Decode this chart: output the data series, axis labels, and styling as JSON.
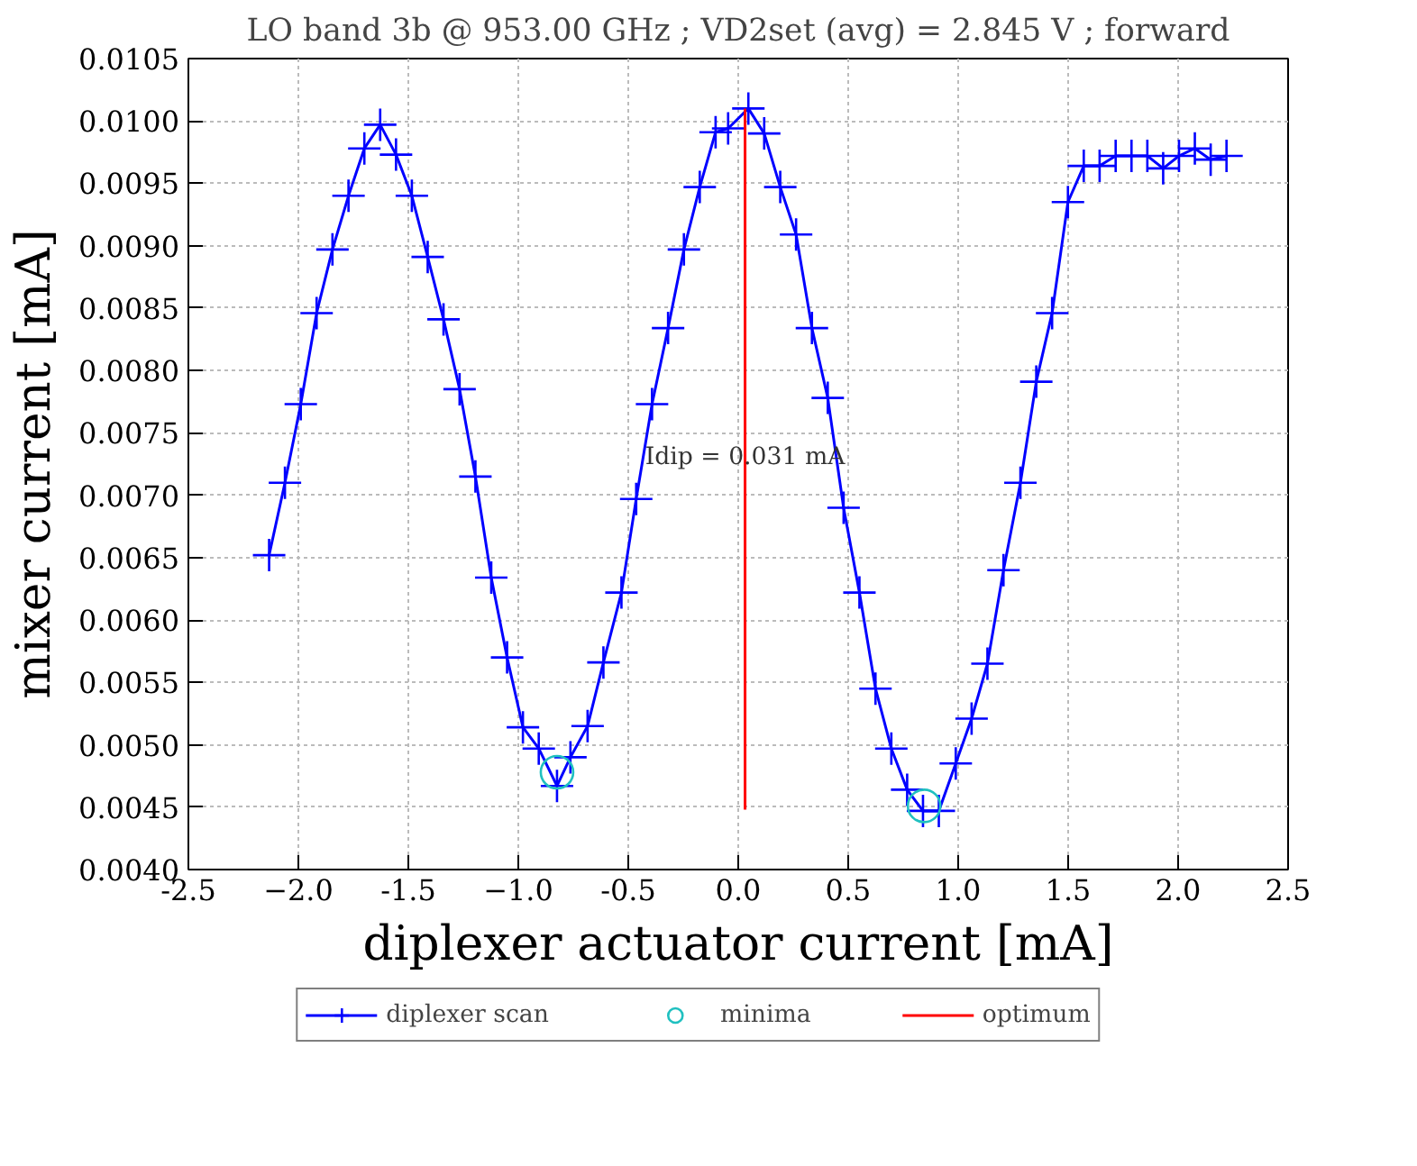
{
  "chart_data": {
    "type": "line",
    "title": "LO band 3b @ 953.00 GHz ; VD2set (avg) = 2.845 V ; forward",
    "xlabel": "diplexer actuator current [mA]",
    "ylabel": "mixer current [mA]",
    "xlim": [
      -2.5,
      2.5
    ],
    "xticks": [
      -2.5,
      {
        "value": -2,
        "label": "−2.0"
      },
      -1.5,
      {
        "value": -1,
        "label": "−1.0"
      },
      -0.5,
      {
        "value": 0,
        "label": "0.0"
      },
      0.5,
      {
        "value": 1,
        "label": "1.0"
      },
      1.5,
      {
        "value": 2,
        "label": "2.0"
      },
      2.5
    ],
    "ylim": [
      0.004,
      0.0105
    ],
    "yticks": [
      {
        "value": 0.004,
        "label": "0.0040"
      },
      0.0045,
      {
        "value": 0.005,
        "label": "0.0050"
      },
      0.0055,
      {
        "value": 0.006,
        "label": "0.0060"
      },
      0.0065,
      {
        "value": 0.007,
        "label": "0.0070"
      },
      0.0075,
      {
        "value": 0.008,
        "label": "0.0080"
      },
      0.0085,
      {
        "value": 0.009,
        "label": "0.0090"
      },
      0.0095,
      {
        "value": 0.01,
        "label": "0.0100"
      },
      0.0105
    ],
    "grid": true,
    "legend": "bottom",
    "annotations": [
      {
        "text": "Idip = 0.031 mA",
        "x": 0.031,
        "y": 0.0073
      }
    ],
    "series": [
      {
        "name": "diplexer scan",
        "color": "#0000ff",
        "marker": "cross",
        "x": [
          -2.133,
          -2.061,
          -1.989,
          -1.917,
          -1.845,
          -1.772,
          -1.7,
          -1.628,
          -1.556,
          -1.484,
          -1.412,
          -1.34,
          -1.267,
          -1.195,
          -1.123,
          -1.051,
          -0.979,
          -0.907,
          -0.824,
          -0.763,
          -0.685,
          -0.613,
          -0.531,
          -0.464,
          -0.392,
          -0.319,
          -0.247,
          -0.175,
          -0.103,
          -0.046,
          0.046,
          0.118,
          0.191,
          0.263,
          0.335,
          0.407,
          0.479,
          0.551,
          0.624,
          0.696,
          0.768,
          0.84,
          0.912,
          0.989,
          1.061,
          1.133,
          1.206,
          1.283,
          1.355,
          1.427,
          1.499,
          1.571,
          1.643,
          1.716,
          1.788,
          1.86,
          1.932,
          2.004,
          2.076,
          2.148,
          2.22
        ],
        "values": [
          0.00652,
          0.0071,
          0.00773,
          0.00846,
          0.00897,
          0.0094,
          0.00978,
          0.00997,
          0.00973,
          0.0094,
          0.00891,
          0.00841,
          0.00785,
          0.00715,
          0.00634,
          0.0057,
          0.00514,
          0.00497,
          0.00467,
          0.0049,
          0.00515,
          0.00566,
          0.00622,
          0.00697,
          0.00773,
          0.00834,
          0.00897,
          0.00947,
          0.00991,
          0.00994,
          0.0101,
          0.0099,
          0.00947,
          0.00909,
          0.00834,
          0.00778,
          0.0069,
          0.00622,
          0.00545,
          0.00497,
          0.00464,
          0.00447,
          0.00447,
          0.00485,
          0.00521,
          0.00565,
          0.0064,
          0.0071,
          0.00791,
          0.00846,
          0.00935,
          0.00964,
          0.00964,
          0.00972,
          0.00972,
          0.00972,
          0.00962,
          0.00972,
          0.00978,
          0.00969,
          0.00972
        ]
      },
      {
        "name": "minima",
        "type": "scatter",
        "color": "#20c0c0",
        "marker": "circle",
        "x": [
          -0.824,
          0.845
        ],
        "values": [
          0.00478,
          0.00451
        ]
      },
      {
        "name": "optimum",
        "color": "#ff0000",
        "marker": "none",
        "x": [
          0.031,
          0.031
        ],
        "values": [
          0.00448,
          0.0101
        ]
      }
    ]
  }
}
